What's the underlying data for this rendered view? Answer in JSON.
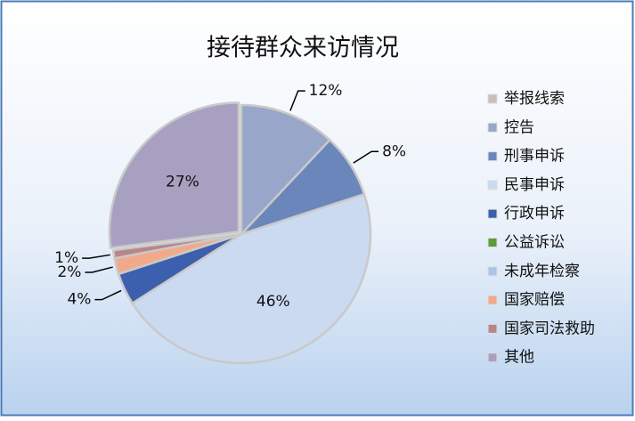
{
  "chart_data": {
    "type": "pie",
    "title": "接待群众来访情况",
    "categories": [
      "举报线索",
      "控告",
      "刑事申诉",
      "民事申诉",
      "行政申诉",
      "公益诉讼",
      "未成年检察",
      "国家赔偿",
      "国家司法救助",
      "其他"
    ],
    "values": [
      0,
      12,
      8,
      46,
      4,
      0,
      0,
      2,
      1,
      27
    ],
    "value_labels": [
      null,
      "12%",
      "8%",
      "46%",
      "4%",
      null,
      null,
      "2%",
      "1%",
      "27%"
    ],
    "colors": [
      "#cdbcbc",
      "#97a6c9",
      "#6b86bb",
      "#cbdaf1",
      "#3d60ae",
      "#5e9c3a",
      "#a9c5e5",
      "#f2a98a",
      "#b8858b",
      "#a7a0c1"
    ],
    "legend": "right"
  }
}
